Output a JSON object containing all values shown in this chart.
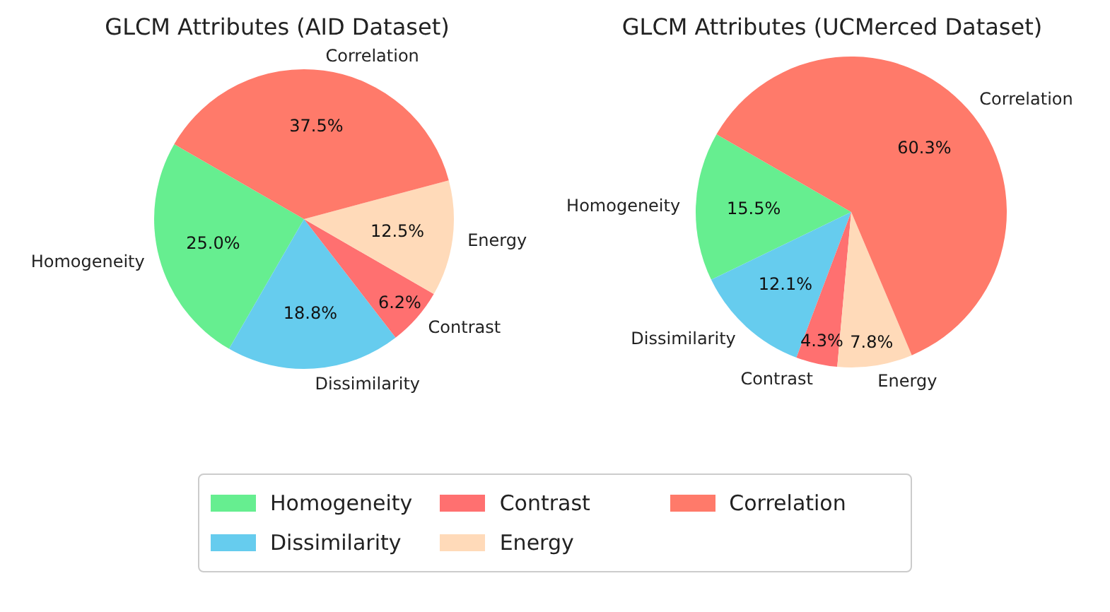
{
  "chart_data": [
    {
      "type": "pie",
      "title": "GLCM Attributes (AID Dataset)",
      "categories": [
        "Homogeneity",
        "Dissimilarity",
        "Contrast",
        "Energy",
        "Correlation"
      ],
      "values": [
        25.0,
        18.8,
        6.2,
        12.5,
        37.5
      ],
      "value_labels": [
        "25.0%",
        "18.8%",
        "6.2%",
        "12.5%",
        "37.5%"
      ],
      "colors": [
        "#66ee90",
        "#66ccee",
        "#ff7070",
        "#ffdab9",
        "#ff7a6a"
      ],
      "legend": "bottom"
    },
    {
      "type": "pie",
      "title": "GLCM Attributes (UCMerced Dataset)",
      "categories": [
        "Homogeneity",
        "Dissimilarity",
        "Contrast",
        "Energy",
        "Correlation"
      ],
      "values": [
        15.5,
        12.1,
        4.3,
        7.8,
        60.3
      ],
      "value_labels": [
        "15.5%",
        "12.1%",
        "4.3%",
        "7.8%",
        "60.3%"
      ],
      "colors": [
        "#66ee90",
        "#66ccee",
        "#ff7070",
        "#ffdab9",
        "#ff7a6a"
      ]
    }
  ]
}
